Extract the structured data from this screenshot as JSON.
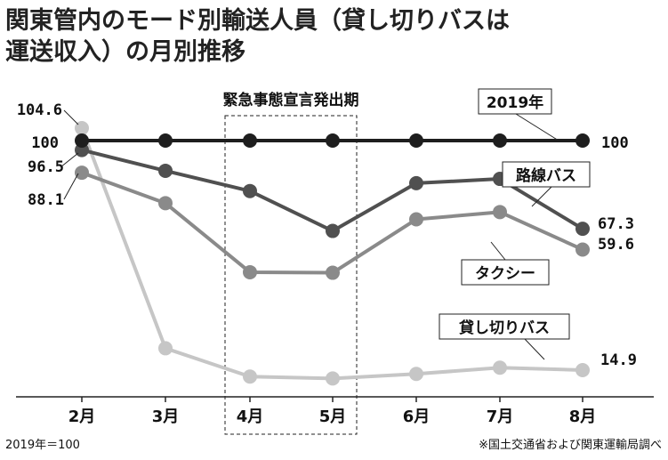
{
  "chart_data": {
    "type": "line",
    "title": "関東管内のモード別輸送人員（貸し切りバスは運送収入）の月別推移",
    "title_lines": [
      "関東管内のモード別輸送人員（貸し切りバスは",
      "運送収入）の月別推移"
    ],
    "categories": [
      "2月",
      "3月",
      "4月",
      "5月",
      "6月",
      "7月",
      "8月"
    ],
    "ylim": [
      5,
      108
    ],
    "grid": false,
    "series": [
      {
        "name": "2019年",
        "color": "#1e1e1e",
        "values": [
          100,
          100,
          100,
          100,
          100,
          100,
          100
        ],
        "start_label": "100",
        "end_label": "100"
      },
      {
        "name": "路線バス",
        "color": "#505050",
        "values": [
          96.5,
          88.8,
          81.3,
          66.5,
          84.2,
          85.8,
          67.3
        ],
        "start_label": "96.5",
        "end_label": "67.3"
      },
      {
        "name": "タクシー",
        "color": "#8a8a8a",
        "values": [
          88.1,
          76.8,
          51.2,
          51.0,
          70.8,
          73.5,
          59.6
        ],
        "start_label": "88.1",
        "end_label": "59.6"
      },
      {
        "name": "貸し切りバス",
        "color": "#c6c6c6",
        "values": [
          104.6,
          23.0,
          12.5,
          11.8,
          13.5,
          15.8,
          14.9
        ],
        "start_label": "104.6",
        "end_label": "14.9"
      }
    ],
    "annotations": {
      "emergency_period": {
        "label": "緊急事態宣言発出期",
        "from": "4月",
        "to": "5月"
      }
    }
  },
  "footer": {
    "base_note": "2019年＝100",
    "source": "※国土交通省および関東運輸局調べ"
  }
}
